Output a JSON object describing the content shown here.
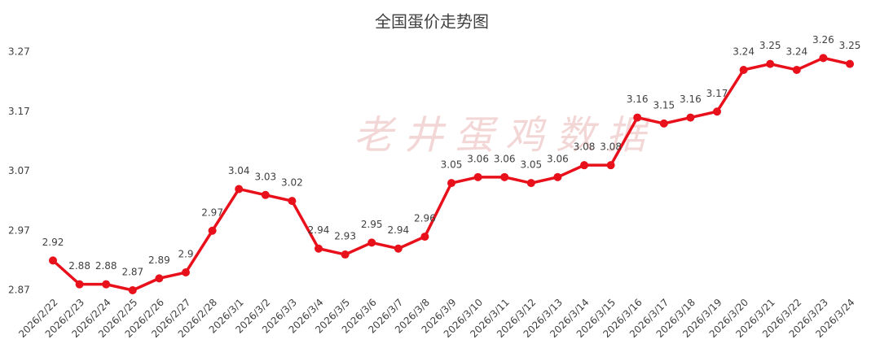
{
  "chart_data": {
    "type": "line",
    "title": "全国蛋价走势图",
    "watermark": "老井蛋鸡数据",
    "categories": [
      "2026/2/22",
      "2026/2/23",
      "2026/2/24",
      "2026/2/25",
      "2026/2/26",
      "2026/2/27",
      "2026/2/28",
      "2026/3/1",
      "2026/3/2",
      "2026/3/3",
      "2026/3/4",
      "2026/3/5",
      "2026/3/6",
      "2026/3/7",
      "2026/3/8",
      "2026/3/9",
      "2026/3/10",
      "2026/3/11",
      "2026/3/12",
      "2026/3/13",
      "2026/3/14",
      "2026/3/15",
      "2026/3/16",
      "2026/3/17",
      "2026/3/18",
      "2026/3/19",
      "2026/3/20",
      "2026/3/21",
      "2026/3/22",
      "2026/3/23",
      "2026/3/24"
    ],
    "values": [
      2.92,
      2.88,
      2.88,
      2.87,
      2.89,
      2.9,
      2.97,
      3.04,
      3.03,
      3.02,
      2.94,
      2.93,
      2.95,
      2.94,
      2.96,
      3.05,
      3.06,
      3.06,
      3.05,
      3.06,
      3.08,
      3.08,
      3.16,
      3.15,
      3.16,
      3.17,
      3.24,
      3.25,
      3.24,
      3.26,
      3.25
    ],
    "color": "#e8101a",
    "ylim": [
      2.87,
      3.27
    ],
    "yticks": [
      2.87,
      2.97,
      3.07,
      3.17,
      3.27
    ]
  }
}
